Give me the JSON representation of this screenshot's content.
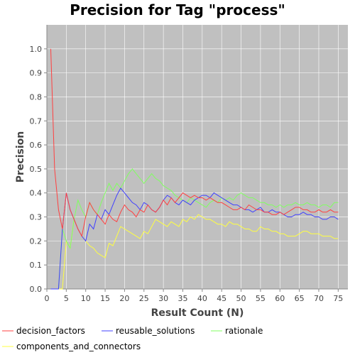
{
  "chart_data": {
    "type": "line",
    "title": "Precision for Tag \"process\"",
    "xlabel": "Result Count (N)",
    "ylabel": "Precision",
    "xlim": [
      0,
      77.5
    ],
    "ylim": [
      0,
      1.1
    ],
    "xticks": [
      0,
      5,
      10,
      15,
      20,
      25,
      30,
      35,
      40,
      45,
      50,
      55,
      60,
      65,
      70,
      75
    ],
    "yticks": [
      0.0,
      0.1,
      0.2,
      0.3,
      0.4,
      0.5,
      0.6,
      0.7,
      0.8,
      0.9,
      1.0
    ],
    "grid": true,
    "plot_background": "#c0c0c0",
    "legend_position": "bottom",
    "series": [
      {
        "name": "decision_factors",
        "color": "#ff4040",
        "points": [
          [
            1,
            1.0
          ],
          [
            2,
            0.5
          ],
          [
            3,
            0.33
          ],
          [
            4,
            0.25
          ],
          [
            5,
            0.4
          ],
          [
            6,
            0.33
          ],
          [
            7,
            0.29
          ],
          [
            8,
            0.25
          ],
          [
            9,
            0.22
          ],
          [
            10,
            0.3
          ],
          [
            11,
            0.36
          ],
          [
            12,
            0.33
          ],
          [
            13,
            0.31
          ],
          [
            14,
            0.29
          ],
          [
            15,
            0.27
          ],
          [
            16,
            0.31
          ],
          [
            17,
            0.29
          ],
          [
            18,
            0.28
          ],
          [
            19,
            0.32
          ],
          [
            20,
            0.35
          ],
          [
            21,
            0.33
          ],
          [
            22,
            0.32
          ],
          [
            23,
            0.3
          ],
          [
            24,
            0.33
          ],
          [
            25,
            0.32
          ],
          [
            26,
            0.35
          ],
          [
            27,
            0.33
          ],
          [
            28,
            0.32
          ],
          [
            29,
            0.34
          ],
          [
            30,
            0.37
          ],
          [
            31,
            0.35
          ],
          [
            32,
            0.38
          ],
          [
            33,
            0.36
          ],
          [
            34,
            0.38
          ],
          [
            35,
            0.4
          ],
          [
            36,
            0.39
          ],
          [
            37,
            0.38
          ],
          [
            38,
            0.39
          ],
          [
            39,
            0.38
          ],
          [
            40,
            0.38
          ],
          [
            41,
            0.37
          ],
          [
            42,
            0.38
          ],
          [
            43,
            0.37
          ],
          [
            44,
            0.36
          ],
          [
            45,
            0.36
          ],
          [
            46,
            0.35
          ],
          [
            47,
            0.34
          ],
          [
            48,
            0.33
          ],
          [
            49,
            0.33
          ],
          [
            50,
            0.34
          ],
          [
            51,
            0.33
          ],
          [
            52,
            0.35
          ],
          [
            53,
            0.34
          ],
          [
            54,
            0.33
          ],
          [
            55,
            0.33
          ],
          [
            56,
            0.32
          ],
          [
            57,
            0.32
          ],
          [
            58,
            0.31
          ],
          [
            59,
            0.31
          ],
          [
            60,
            0.32
          ],
          [
            61,
            0.31
          ],
          [
            62,
            0.32
          ],
          [
            63,
            0.33
          ],
          [
            64,
            0.34
          ],
          [
            65,
            0.34
          ],
          [
            66,
            0.33
          ],
          [
            67,
            0.33
          ],
          [
            68,
            0.32
          ],
          [
            69,
            0.32
          ],
          [
            70,
            0.33
          ],
          [
            71,
            0.32
          ],
          [
            72,
            0.32
          ],
          [
            73,
            0.33
          ],
          [
            74,
            0.32
          ],
          [
            75,
            0.32
          ]
        ]
      },
      {
        "name": "reusable_solutions",
        "color": "#4040ff",
        "points": [
          [
            1,
            0.0
          ],
          [
            2,
            0.0
          ],
          [
            3,
            0.0
          ],
          [
            4,
            0.25
          ],
          [
            5,
            0.4
          ],
          [
            6,
            0.33
          ],
          [
            7,
            0.29
          ],
          [
            8,
            0.25
          ],
          [
            9,
            0.22
          ],
          [
            10,
            0.2
          ],
          [
            11,
            0.27
          ],
          [
            12,
            0.25
          ],
          [
            13,
            0.31
          ],
          [
            14,
            0.29
          ],
          [
            15,
            0.33
          ],
          [
            16,
            0.31
          ],
          [
            17,
            0.35
          ],
          [
            18,
            0.39
          ],
          [
            19,
            0.42
          ],
          [
            20,
            0.4
          ],
          [
            21,
            0.38
          ],
          [
            22,
            0.36
          ],
          [
            23,
            0.35
          ],
          [
            24,
            0.33
          ],
          [
            25,
            0.36
          ],
          [
            26,
            0.35
          ],
          [
            27,
            0.33
          ],
          [
            28,
            0.32
          ],
          [
            29,
            0.34
          ],
          [
            30,
            0.37
          ],
          [
            31,
            0.39
          ],
          [
            32,
            0.38
          ],
          [
            33,
            0.36
          ],
          [
            34,
            0.35
          ],
          [
            35,
            0.37
          ],
          [
            36,
            0.36
          ],
          [
            37,
            0.35
          ],
          [
            38,
            0.37
          ],
          [
            39,
            0.38
          ],
          [
            40,
            0.39
          ],
          [
            41,
            0.39
          ],
          [
            42,
            0.38
          ],
          [
            43,
            0.4
          ],
          [
            44,
            0.39
          ],
          [
            45,
            0.38
          ],
          [
            46,
            0.37
          ],
          [
            47,
            0.36
          ],
          [
            48,
            0.35
          ],
          [
            49,
            0.35
          ],
          [
            50,
            0.34
          ],
          [
            51,
            0.33
          ],
          [
            52,
            0.33
          ],
          [
            53,
            0.32
          ],
          [
            54,
            0.33
          ],
          [
            55,
            0.34
          ],
          [
            56,
            0.32
          ],
          [
            57,
            0.32
          ],
          [
            58,
            0.33
          ],
          [
            59,
            0.32
          ],
          [
            60,
            0.32
          ],
          [
            61,
            0.31
          ],
          [
            62,
            0.3
          ],
          [
            63,
            0.3
          ],
          [
            64,
            0.31
          ],
          [
            65,
            0.31
          ],
          [
            66,
            0.32
          ],
          [
            67,
            0.31
          ],
          [
            68,
            0.31
          ],
          [
            69,
            0.3
          ],
          [
            70,
            0.3
          ],
          [
            71,
            0.29
          ],
          [
            72,
            0.29
          ],
          [
            73,
            0.3
          ],
          [
            74,
            0.3
          ],
          [
            75,
            0.29
          ]
        ]
      },
      {
        "name": "rationale",
        "color": "#80ff60",
        "points": [
          [
            1,
            0.0
          ],
          [
            2,
            0.0
          ],
          [
            3,
            0.0
          ],
          [
            4,
            0.25
          ],
          [
            5,
            0.2
          ],
          [
            6,
            0.17
          ],
          [
            7,
            0.29
          ],
          [
            8,
            0.37
          ],
          [
            9,
            0.33
          ],
          [
            10,
            0.3
          ],
          [
            11,
            0.36
          ],
          [
            12,
            0.33
          ],
          [
            13,
            0.31
          ],
          [
            14,
            0.36
          ],
          [
            15,
            0.4
          ],
          [
            16,
            0.44
          ],
          [
            17,
            0.41
          ],
          [
            18,
            0.44
          ],
          [
            19,
            0.42
          ],
          [
            20,
            0.45
          ],
          [
            21,
            0.48
          ],
          [
            22,
            0.5
          ],
          [
            23,
            0.48
          ],
          [
            24,
            0.46
          ],
          [
            25,
            0.44
          ],
          [
            26,
            0.46
          ],
          [
            27,
            0.48
          ],
          [
            28,
            0.46
          ],
          [
            29,
            0.45
          ],
          [
            30,
            0.43
          ],
          [
            31,
            0.42
          ],
          [
            32,
            0.41
          ],
          [
            33,
            0.39
          ],
          [
            34,
            0.38
          ],
          [
            35,
            0.37
          ],
          [
            36,
            0.36
          ],
          [
            37,
            0.38
          ],
          [
            38,
            0.37
          ],
          [
            39,
            0.36
          ],
          [
            40,
            0.35
          ],
          [
            41,
            0.34
          ],
          [
            42,
            0.36
          ],
          [
            43,
            0.37
          ],
          [
            44,
            0.36
          ],
          [
            45,
            0.38
          ],
          [
            46,
            0.37
          ],
          [
            47,
            0.38
          ],
          [
            48,
            0.37
          ],
          [
            49,
            0.39
          ],
          [
            50,
            0.4
          ],
          [
            51,
            0.39
          ],
          [
            52,
            0.38
          ],
          [
            53,
            0.38
          ],
          [
            54,
            0.37
          ],
          [
            55,
            0.36
          ],
          [
            56,
            0.36
          ],
          [
            57,
            0.35
          ],
          [
            58,
            0.35
          ],
          [
            59,
            0.34
          ],
          [
            60,
            0.35
          ],
          [
            61,
            0.34
          ],
          [
            62,
            0.35
          ],
          [
            63,
            0.35
          ],
          [
            64,
            0.36
          ],
          [
            65,
            0.35
          ],
          [
            66,
            0.35
          ],
          [
            67,
            0.36
          ],
          [
            68,
            0.35
          ],
          [
            69,
            0.35
          ],
          [
            70,
            0.34
          ],
          [
            71,
            0.35
          ],
          [
            72,
            0.35
          ],
          [
            73,
            0.34
          ],
          [
            74,
            0.36
          ],
          [
            75,
            0.36
          ]
        ]
      },
      {
        "name": "components_and_connectors",
        "color": "#ffff40",
        "points": [
          [
            1,
            0.0
          ],
          [
            2,
            0.0
          ],
          [
            3,
            0.0
          ],
          [
            4,
            0.0
          ],
          [
            5,
            0.2
          ],
          [
            6,
            0.17
          ],
          [
            7,
            0.29
          ],
          [
            8,
            0.25
          ],
          [
            9,
            0.22
          ],
          [
            10,
            0.2
          ],
          [
            11,
            0.18
          ],
          [
            12,
            0.17
          ],
          [
            13,
            0.15
          ],
          [
            14,
            0.14
          ],
          [
            15,
            0.13
          ],
          [
            16,
            0.19
          ],
          [
            17,
            0.18
          ],
          [
            18,
            0.22
          ],
          [
            19,
            0.26
          ],
          [
            20,
            0.25
          ],
          [
            21,
            0.24
          ],
          [
            22,
            0.23
          ],
          [
            23,
            0.22
          ],
          [
            24,
            0.21
          ],
          [
            25,
            0.24
          ],
          [
            26,
            0.23
          ],
          [
            27,
            0.26
          ],
          [
            28,
            0.29
          ],
          [
            29,
            0.28
          ],
          [
            30,
            0.27
          ],
          [
            31,
            0.26
          ],
          [
            32,
            0.28
          ],
          [
            33,
            0.27
          ],
          [
            34,
            0.26
          ],
          [
            35,
            0.29
          ],
          [
            36,
            0.28
          ],
          [
            37,
            0.3
          ],
          [
            38,
            0.29
          ],
          [
            39,
            0.31
          ],
          [
            40,
            0.3
          ],
          [
            41,
            0.29
          ],
          [
            42,
            0.29
          ],
          [
            43,
            0.28
          ],
          [
            44,
            0.27
          ],
          [
            45,
            0.27
          ],
          [
            46,
            0.26
          ],
          [
            47,
            0.28
          ],
          [
            48,
            0.27
          ],
          [
            49,
            0.27
          ],
          [
            50,
            0.26
          ],
          [
            51,
            0.25
          ],
          [
            52,
            0.25
          ],
          [
            53,
            0.24
          ],
          [
            54,
            0.24
          ],
          [
            55,
            0.26
          ],
          [
            56,
            0.25
          ],
          [
            57,
            0.25
          ],
          [
            58,
            0.24
          ],
          [
            59,
            0.24
          ],
          [
            60,
            0.23
          ],
          [
            61,
            0.23
          ],
          [
            62,
            0.22
          ],
          [
            63,
            0.22
          ],
          [
            64,
            0.22
          ],
          [
            65,
            0.23
          ],
          [
            66,
            0.24
          ],
          [
            67,
            0.24
          ],
          [
            68,
            0.23
          ],
          [
            69,
            0.23
          ],
          [
            70,
            0.23
          ],
          [
            71,
            0.22
          ],
          [
            72,
            0.22
          ],
          [
            73,
            0.22
          ],
          [
            74,
            0.21
          ],
          [
            75,
            0.21
          ]
        ]
      }
    ]
  }
}
